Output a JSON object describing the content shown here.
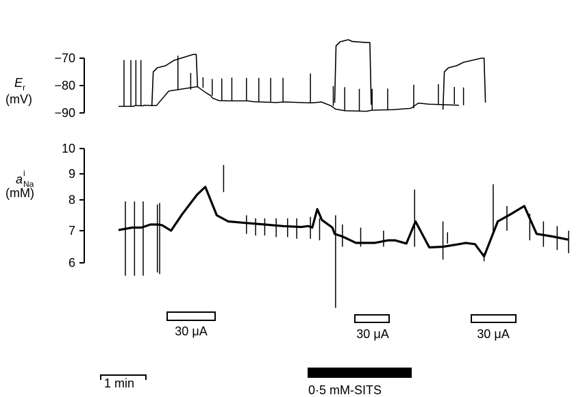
{
  "chart_data": [
    {
      "type": "line",
      "title": "",
      "ylabel_main": "E",
      "ylabel_sub": "r",
      "ylabel_unit": "(mV)",
      "xlabel": "",
      "ylim": [
        -90,
        -70
      ],
      "yticks": [
        -70,
        -80,
        -90
      ],
      "ytick_labels": [
        "−70",
        "−80",
        "−90"
      ],
      "grid": false,
      "series": [
        {
          "x": [
            0,
            3.2,
            3.8,
            5.4,
            5.6,
            7.3,
            8.3,
            11.0,
            13.0,
            17.2,
            17.6,
            19.2,
            20.2,
            20.6,
            22.0,
            24.2,
            25.6,
            28.2,
            29.6,
            34.6,
            35.4,
            36.6,
            41.7,
            42.4,
            44.4,
            46.5,
            47.5,
            49.5,
            52.6,
            54.2,
            55.5,
            60.0,
            64.0,
            65.6,
            68.0,
            74.5
          ],
          "y": [
            -87.6,
            -87.6,
            -87.3,
            -87.4,
            -87.2,
            -87.3,
            -87.3,
            -82.0,
            -81.5,
            -80.4,
            -80.8,
            -82.7,
            -83.7,
            -84.6,
            -85.5,
            -85.6,
            -85.6,
            -85.6,
            -85.9,
            -86.2,
            -86.1,
            -86.0,
            -86.3,
            -86.3,
            -86.0,
            -87.4,
            -88.6,
            -89.2,
            -89.3,
            -89.4,
            -89.0,
            -88.8,
            -88.3,
            -86.4,
            -86.8,
            -87.2
          ],
          "pulses_x": [
            1.2,
            2.7,
            3.8,
            4.9,
            13.0,
            15.8,
            18.5,
            20.5,
            22.6,
            24.8,
            28.0,
            30.7,
            33.3,
            36.0,
            42.0,
            47.0,
            49.5,
            52.7,
            55.5,
            58.9,
            64.6,
            70.0,
            73.5,
            75.5
          ],
          "pulses_y": [
            -70.7,
            -70.7,
            -70.7,
            -70.7,
            -69.1,
            -75.4,
            -77.0,
            -77.6,
            -77.4,
            -77.1,
            -77.2,
            -77.2,
            -77.2,
            -77.2,
            -75.6,
            -80.2,
            -80.6,
            -81.2,
            -81.2,
            -81.1,
            -79.7,
            -79.5,
            -80.5,
            -80.7
          ]
        }
      ],
      "current_injections": [
        {
          "x": [
            7.3,
            17.0
          ],
          "y": [
            -73.0,
            -68.6
          ]
        },
        {
          "x": [
            47.3,
            55.0
          ],
          "y": [
            -63.5,
            -64.3
          ]
        },
        {
          "x": [
            71.0,
            80.0
          ],
          "y": [
            -73.0,
            -70.0
          ]
        }
      ]
    },
    {
      "type": "line",
      "title": "",
      "ylabel_main": "a",
      "ylabel_sup": "i",
      "ylabel_sub": "Na",
      "ylabel_unit": "(mM)",
      "xlabel": "",
      "ylim": [
        6,
        10
      ],
      "yticks": [
        10,
        9,
        8,
        7,
        6
      ],
      "ytick_labels": [
        "10",
        "9",
        "8",
        "7",
        "6"
      ],
      "grid": false,
      "series": [
        {
          "x": [
            0,
            3.0,
            5.0,
            7.0,
            8.6,
            9.5,
            11.5,
            14.0,
            17.2,
            19.0,
            21.5,
            24.0,
            28.0,
            32.0,
            36.0,
            40.0,
            41.5,
            42.4,
            43.5,
            44.5,
            46.8,
            47.3,
            49.0,
            52.0,
            56.0,
            57.2,
            59.0,
            60.5,
            63.0,
            65.0,
            68.0,
            71.0,
            74.5,
            76.0,
            78.0,
            80.0,
            83.0,
            86.0,
            88.8,
            91.5,
            95.0,
            98.5
          ],
          "y": [
            7.02,
            7.1,
            7.1,
            7.2,
            7.2,
            7.18,
            7.0,
            7.55,
            8.2,
            8.5,
            7.5,
            7.3,
            7.25,
            7.2,
            7.15,
            7.12,
            7.15,
            7.1,
            7.7,
            7.35,
            7.1,
            6.9,
            6.82,
            6.62,
            6.62,
            6.65,
            6.7,
            6.7,
            6.6,
            7.3,
            6.48,
            6.5,
            6.58,
            6.62,
            6.58,
            6.2,
            7.3,
            7.55,
            7.8,
            6.9,
            6.82,
            6.72
          ],
          "spikes_x": [
            1.5,
            3.5,
            5.4,
            8.5,
            9.0,
            23.0,
            28.0,
            30.0,
            32.0,
            34.5,
            37.0,
            39.0,
            42.0,
            44.0,
            47.5,
            49.0,
            53.0,
            58.0,
            64.8,
            71.0,
            72.0,
            80.0,
            82.0,
            85.0,
            90.0,
            93.0,
            96.0,
            98.5
          ],
          "spikes_top": [
            7.95,
            7.95,
            7.95,
            7.85,
            7.9,
            9.35,
            7.5,
            7.4,
            7.4,
            7.4,
            7.4,
            7.4,
            7.45,
            7.4,
            7.5,
            7.2,
            7.1,
            7.0,
            8.4,
            7.3,
            6.95,
            6.3,
            8.6,
            7.8,
            7.55,
            7.3,
            7.15,
            7.0
          ],
          "spikes_bottom": [
            5.6,
            5.6,
            5.6,
            5.7,
            5.65,
            8.3,
            6.9,
            6.85,
            6.85,
            6.8,
            6.8,
            6.75,
            6.75,
            6.7,
            4.6,
            6.5,
            6.5,
            6.5,
            6.5,
            6.1,
            6.6,
            6.05,
            6.9,
            7.0,
            6.7,
            6.5,
            6.4,
            6.3
          ]
        }
      ]
    }
  ],
  "stimulus_bars": [
    {
      "label": "30 μA"
    },
    {
      "label": "30 μA"
    },
    {
      "label": "30 μA"
    }
  ],
  "drug_bar": {
    "label": "0·5 mM-SITS"
  },
  "scale_bar": {
    "label": "1 min",
    "minutes": 1
  }
}
